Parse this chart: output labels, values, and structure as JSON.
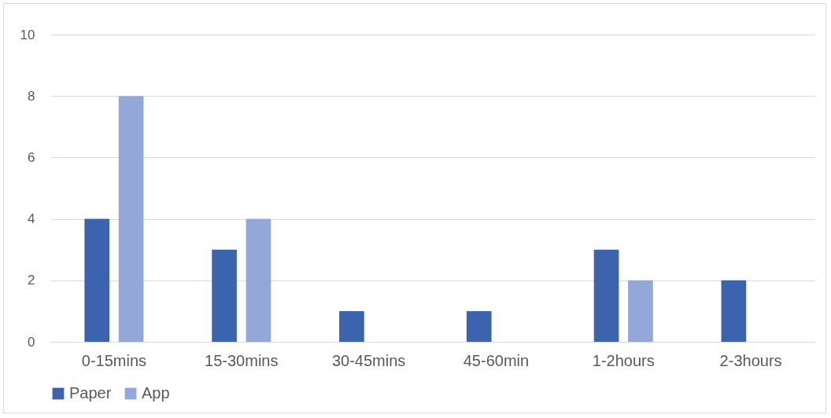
{
  "chart_data": {
    "type": "bar",
    "categories": [
      "0-15mins",
      "15-30mins",
      "30-45mins",
      "45-60min",
      "1-2hours",
      "2-3hours"
    ],
    "series": [
      {
        "name": "Paper",
        "color": "#3c64ae",
        "values": [
          4,
          3,
          1,
          1,
          3,
          2
        ]
      },
      {
        "name": "App",
        "color": "#93a7d9",
        "values": [
          8,
          4,
          0,
          0,
          2,
          0
        ]
      }
    ],
    "ylim": [
      0,
      10
    ],
    "yticks": [
      0,
      2,
      4,
      6,
      8,
      10
    ],
    "grid": "y",
    "legend": "bottom"
  }
}
